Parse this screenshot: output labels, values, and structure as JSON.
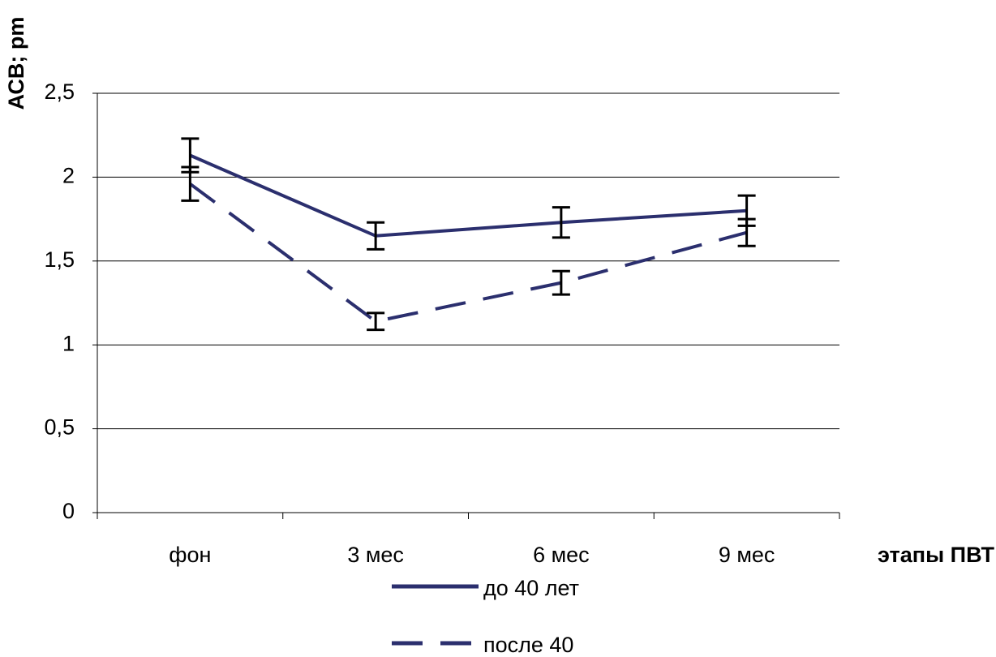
{
  "chart_data": {
    "type": "line",
    "y_label": "АСВ; pm",
    "x_label": "этапы ПВТ",
    "categories": [
      "фон",
      "3 мес",
      "6 мес",
      "9 мес"
    ],
    "series": [
      {
        "name": "до 40 лет",
        "color": "#2b2f6e",
        "dash": false,
        "values": [
          2.13,
          1.65,
          1.73,
          1.8
        ],
        "errors": [
          0.1,
          0.08,
          0.09,
          0.09
        ]
      },
      {
        "name": "после 40",
        "color": "#2b2f6e",
        "dash": true,
        "values": [
          1.96,
          1.14,
          1.37,
          1.67
        ],
        "errors": [
          0.1,
          0.05,
          0.07,
          0.08
        ]
      }
    ],
    "ylim": [
      0,
      2.5
    ],
    "yticks": [
      0,
      {
        "value": 0.5,
        "label": "0,5"
      },
      1,
      {
        "value": 1.5,
        "label": "1,5"
      },
      2,
      {
        "value": 2.5,
        "label": "2,5"
      }
    ],
    "grid": true,
    "error_color": "#000000"
  }
}
